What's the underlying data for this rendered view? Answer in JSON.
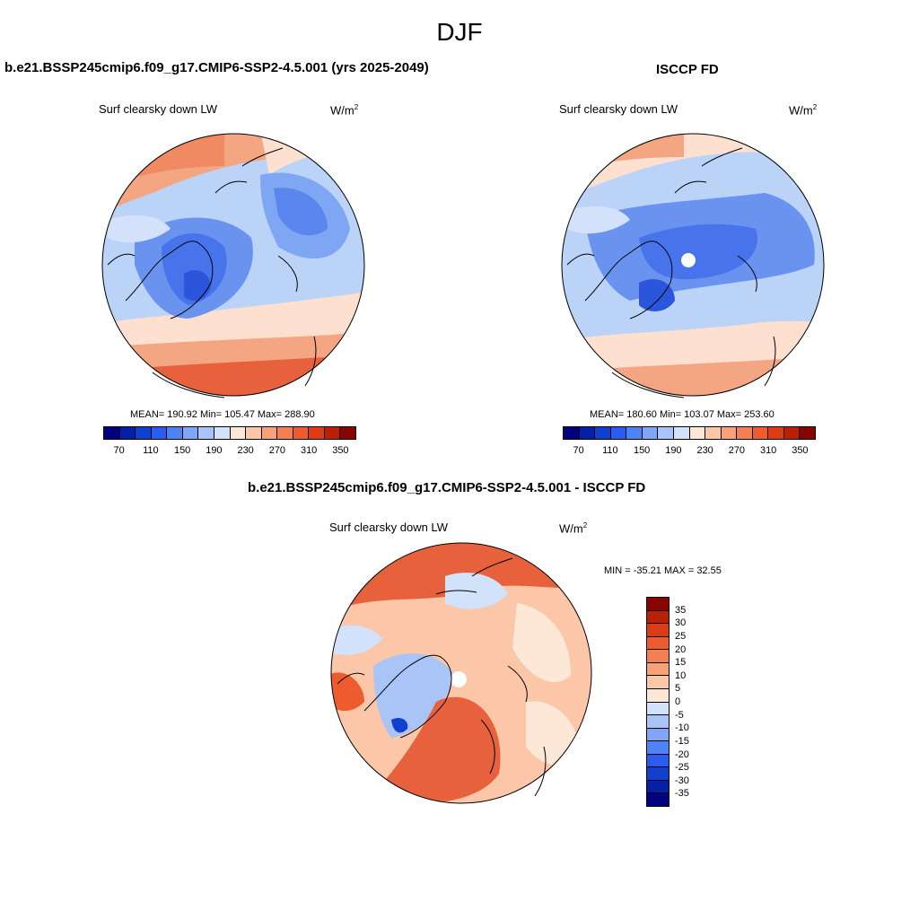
{
  "season": "DJF",
  "units_base": "W/m",
  "units_exp": "2",
  "panel_left": {
    "title": "b.e21.BSSP245cmip6.f09_g17.CMIP6-SSP2-4.5.001 (yrs 2025-2049)",
    "variable": "Surf clearsky down LW",
    "stats": "MEAN= 190.92  Min= 105.47  Max= 288.90"
  },
  "panel_right": {
    "title": "ISCCP FD",
    "variable": "Surf clearsky down LW",
    "stats": "MEAN= 180.60  Min= 103.07  Max= 253.60"
  },
  "panel_diff": {
    "title": "b.e21.BSSP245cmip6.f09_g17.CMIP6-SSP2-4.5.001 - ISCCP FD",
    "variable": "Surf clearsky down LW",
    "stats": "MIN = -35.21 MAX =  32.55"
  },
  "colorbar_field": {
    "ticks": [
      "70",
      "110",
      "150",
      "190",
      "230",
      "270",
      "310",
      "350"
    ],
    "colors": [
      "#000080",
      "#0520a8",
      "#1040d0",
      "#2a5cf0",
      "#4f82f5",
      "#7fa7f5",
      "#a9c4f6",
      "#d2e2fa",
      "#fde7d7",
      "#fcc6a8",
      "#f9a27a",
      "#f47f52",
      "#ee5b2e",
      "#dd3b14",
      "#b92005",
      "#870400"
    ]
  },
  "colorbar_diff": {
    "ticks": [
      "35",
      "30",
      "25",
      "20",
      "15",
      "10",
      "5",
      "0",
      "-5",
      "-10",
      "-15",
      "-20",
      "-25",
      "-30",
      "-35"
    ],
    "colors": [
      "#870400",
      "#b92005",
      "#dd3b14",
      "#ee5b2e",
      "#f47f52",
      "#f9a27a",
      "#fcc6a8",
      "#fde7d7",
      "#d2e2fa",
      "#a9c4f6",
      "#7fa7f5",
      "#4f82f5",
      "#2a5cf0",
      "#1040d0",
      "#0520a8",
      "#000080"
    ]
  }
}
